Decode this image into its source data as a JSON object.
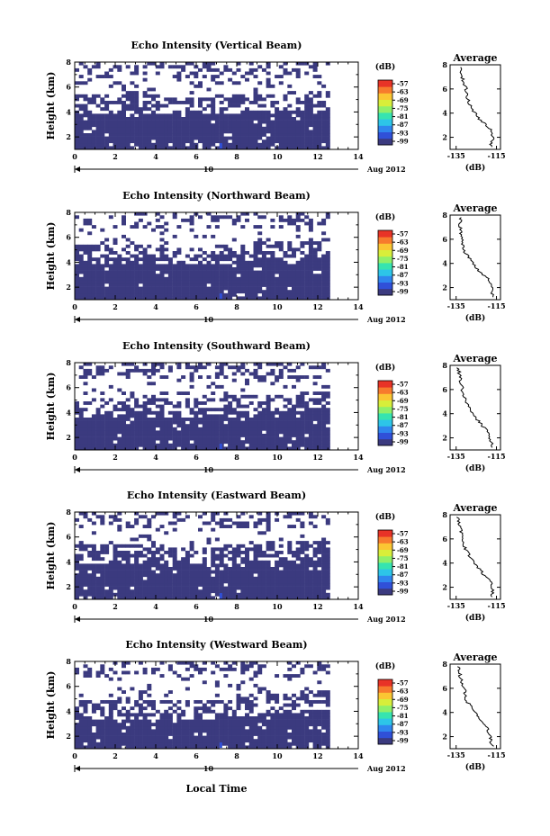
{
  "figure": {
    "xlabel": "Local Time",
    "ylabel": "Height (km)",
    "date_label": "Aug 2012",
    "day_label": "10",
    "colorbar_unit": "(dB)",
    "colorbar_ticks": [
      "-57",
      "-63",
      "-69",
      "-75",
      "-81",
      "-87",
      "-93",
      "-99"
    ],
    "colors": [
      "#3b3a7f",
      "#3050d8",
      "#2f86ee",
      "#2dc5e8",
      "#36e4b0",
      "#8ff06a",
      "#d8ee3a",
      "#fbc633",
      "#f77b2d",
      "#e83327"
    ],
    "average_title": "Average",
    "average_xlabel": "(dB)",
    "average_xticks": [
      "-135",
      "-115"
    ],
    "average_yticks": [
      "2",
      "4",
      "6",
      "8"
    ]
  },
  "chart_data": [
    {
      "type": "heatmap",
      "title": "Echo Intensity (Vertical Beam)",
      "xlabel": "Local Time",
      "ylabel": "Height (km)",
      "x_range": [
        0,
        14
      ],
      "y_range": [
        1,
        8
      ],
      "x_ticks": [
        0,
        2,
        4,
        6,
        8,
        10,
        12,
        14
      ],
      "y_ticks": [
        2,
        4,
        6,
        8
      ],
      "data_end_hour": 12.6,
      "dominant_value_dB": -99,
      "colorbar_range": [
        -99,
        -57
      ],
      "layer_top_km": [
        {
          "t": 0,
          "h": 4.0
        },
        {
          "t": 3,
          "h": 4.0
        },
        {
          "t": 6,
          "h": 3.9
        },
        {
          "t": 7.5,
          "h": 4.1
        },
        {
          "t": 10,
          "h": 4.2
        },
        {
          "t": 12.6,
          "h": 4.4
        }
      ],
      "average_profile": {
        "x_dB": [
          -118,
          -117,
          -117,
          -120,
          -124,
          -127,
          -129,
          -130,
          -132,
          -133
        ],
        "height_km": [
          1.2,
          1.8,
          2.5,
          3.0,
          3.6,
          4.3,
          5.0,
          6.0,
          7.0,
          7.8
        ]
      }
    },
    {
      "type": "heatmap",
      "title": "Echo Intensity (Northward Beam)",
      "xlabel": "Local Time",
      "ylabel": "Height (km)",
      "x_range": [
        0,
        14
      ],
      "y_range": [
        1,
        8
      ],
      "x_ticks": [
        0,
        2,
        4,
        6,
        8,
        10,
        12,
        14
      ],
      "y_ticks": [
        2,
        4,
        6,
        8
      ],
      "data_end_hour": 12.6,
      "dominant_value_dB": -99,
      "colorbar_range": [
        -99,
        -57
      ],
      "layer_top_km": [
        {
          "t": 0,
          "h": 4.0
        },
        {
          "t": 3,
          "h": 4.0
        },
        {
          "t": 6,
          "h": 3.9
        },
        {
          "t": 7.5,
          "h": 4.1
        },
        {
          "t": 10,
          "h": 4.3
        },
        {
          "t": 12.6,
          "h": 4.5
        }
      ],
      "average_profile": {
        "x_dB": [
          -117,
          -117,
          -118,
          -121,
          -125,
          -128,
          -131,
          -132,
          -133,
          -133
        ],
        "height_km": [
          1.2,
          1.8,
          2.5,
          3.0,
          3.6,
          4.3,
          5.0,
          6.0,
          7.0,
          7.8
        ]
      }
    },
    {
      "type": "heatmap",
      "title": "Echo Intensity (Southward Beam)",
      "xlabel": "Local Time",
      "ylabel": "Height (km)",
      "x_range": [
        0,
        14
      ],
      "y_range": [
        1,
        8
      ],
      "x_ticks": [
        0,
        2,
        4,
        6,
        8,
        10,
        12,
        14
      ],
      "y_ticks": [
        2,
        4,
        6,
        8
      ],
      "data_end_hour": 12.6,
      "dominant_value_dB": -99,
      "colorbar_range": [
        -99,
        -57
      ],
      "layer_top_km": [
        {
          "t": 0,
          "h": 3.8
        },
        {
          "t": 3,
          "h": 3.8
        },
        {
          "t": 6,
          "h": 3.8
        },
        {
          "t": 7.5,
          "h": 4.0
        },
        {
          "t": 10,
          "h": 4.2
        },
        {
          "t": 12.6,
          "h": 4.5
        }
      ],
      "average_profile": {
        "x_dB": [
          -117,
          -118,
          -119,
          -122,
          -125,
          -128,
          -130,
          -132,
          -133,
          -134
        ],
        "height_km": [
          1.2,
          1.8,
          2.5,
          3.0,
          3.6,
          4.3,
          5.0,
          6.0,
          7.0,
          7.8
        ]
      }
    },
    {
      "type": "heatmap",
      "title": "Echo Intensity (Eastward Beam)",
      "xlabel": "Local Time",
      "ylabel": "Height (km)",
      "x_range": [
        0,
        14
      ],
      "y_range": [
        1,
        8
      ],
      "x_ticks": [
        0,
        2,
        4,
        6,
        8,
        10,
        12,
        14
      ],
      "y_ticks": [
        2,
        4,
        6,
        8
      ],
      "data_end_hour": 12.6,
      "dominant_value_dB": -99,
      "colorbar_range": [
        -99,
        -57
      ],
      "layer_top_km": [
        {
          "t": 0,
          "h": 4.0
        },
        {
          "t": 3,
          "h": 4.0
        },
        {
          "t": 6,
          "h": 3.9
        },
        {
          "t": 7.5,
          "h": 4.1
        },
        {
          "t": 10,
          "h": 4.3
        },
        {
          "t": 12.6,
          "h": 4.5
        }
      ],
      "average_profile": {
        "x_dB": [
          -117,
          -117,
          -118,
          -121,
          -124,
          -127,
          -130,
          -132,
          -133,
          -134
        ],
        "height_km": [
          1.2,
          1.8,
          2.5,
          3.0,
          3.6,
          4.3,
          5.0,
          6.0,
          7.0,
          7.8
        ]
      }
    },
    {
      "type": "heatmap",
      "title": "Echo Intensity (Westward Beam)",
      "xlabel": "Local Time",
      "ylabel": "Height (km)",
      "x_range": [
        0,
        14
      ],
      "y_range": [
        1,
        8
      ],
      "x_ticks": [
        0,
        2,
        4,
        6,
        8,
        10,
        12,
        14
      ],
      "y_ticks": [
        2,
        4,
        6,
        8
      ],
      "data_end_hour": 12.6,
      "dominant_value_dB": -99,
      "colorbar_range": [
        -99,
        -57
      ],
      "layer_top_km": [
        {
          "t": 0,
          "h": 3.6
        },
        {
          "t": 3,
          "h": 3.5
        },
        {
          "t": 6,
          "h": 3.5
        },
        {
          "t": 7.5,
          "h": 3.7
        },
        {
          "t": 10,
          "h": 4.0
        },
        {
          "t": 12.6,
          "h": 4.3
        }
      ],
      "average_profile": {
        "x_dB": [
          -117,
          -118,
          -119,
          -121,
          -124,
          -127,
          -130,
          -131,
          -133,
          -134
        ],
        "height_km": [
          1.2,
          1.8,
          2.5,
          3.0,
          3.6,
          4.3,
          5.0,
          6.0,
          7.0,
          7.8
        ]
      }
    }
  ]
}
